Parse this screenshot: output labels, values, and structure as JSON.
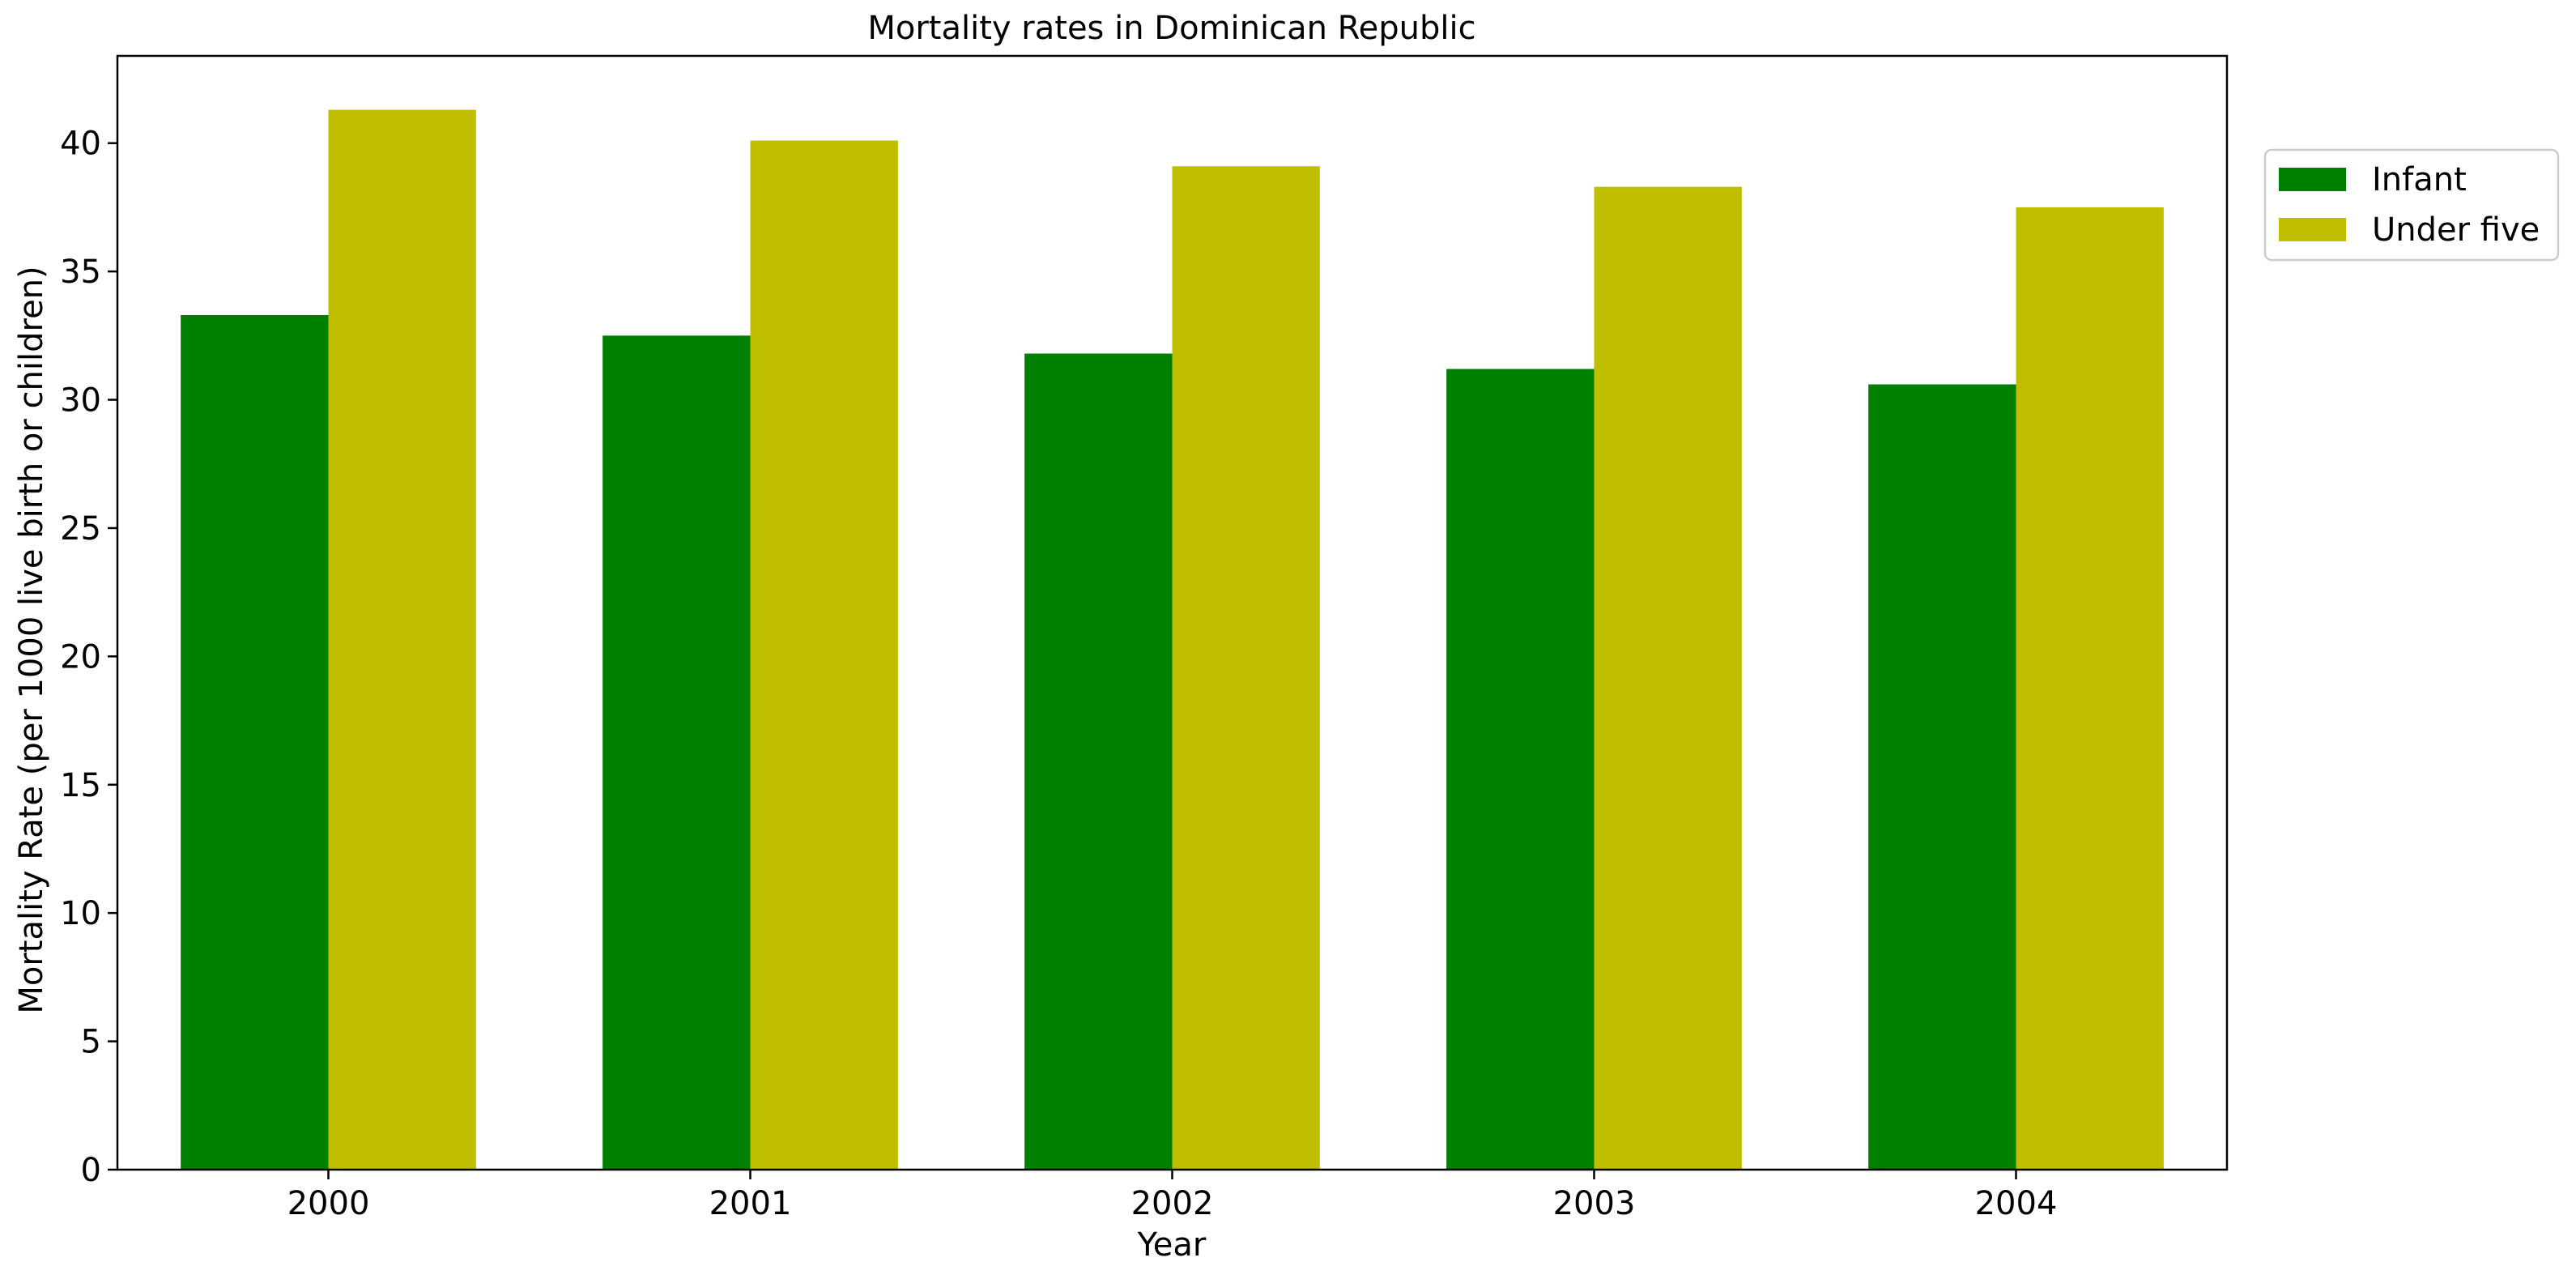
{
  "chart_data": {
    "type": "bar",
    "title": "Mortality rates in Dominican Republic",
    "xlabel": "Year",
    "ylabel": "Mortality Rate (per 1000 live birth or children)",
    "categories": [
      "2000",
      "2001",
      "2002",
      "2003",
      "2004"
    ],
    "series": [
      {
        "name": "Infant",
        "color": "#008000",
        "values": [
          33.3,
          32.5,
          31.8,
          31.2,
          30.6
        ]
      },
      {
        "name": "Under five",
        "color": "#bfbf00",
        "values": [
          41.3,
          40.1,
          39.1,
          38.3,
          37.5
        ]
      }
    ],
    "ylim": [
      0,
      43.4
    ],
    "yticks": [
      0,
      5,
      10,
      15,
      20,
      25,
      30,
      35,
      40
    ],
    "grid": false,
    "legend_position": "upper-right-outside"
  }
}
